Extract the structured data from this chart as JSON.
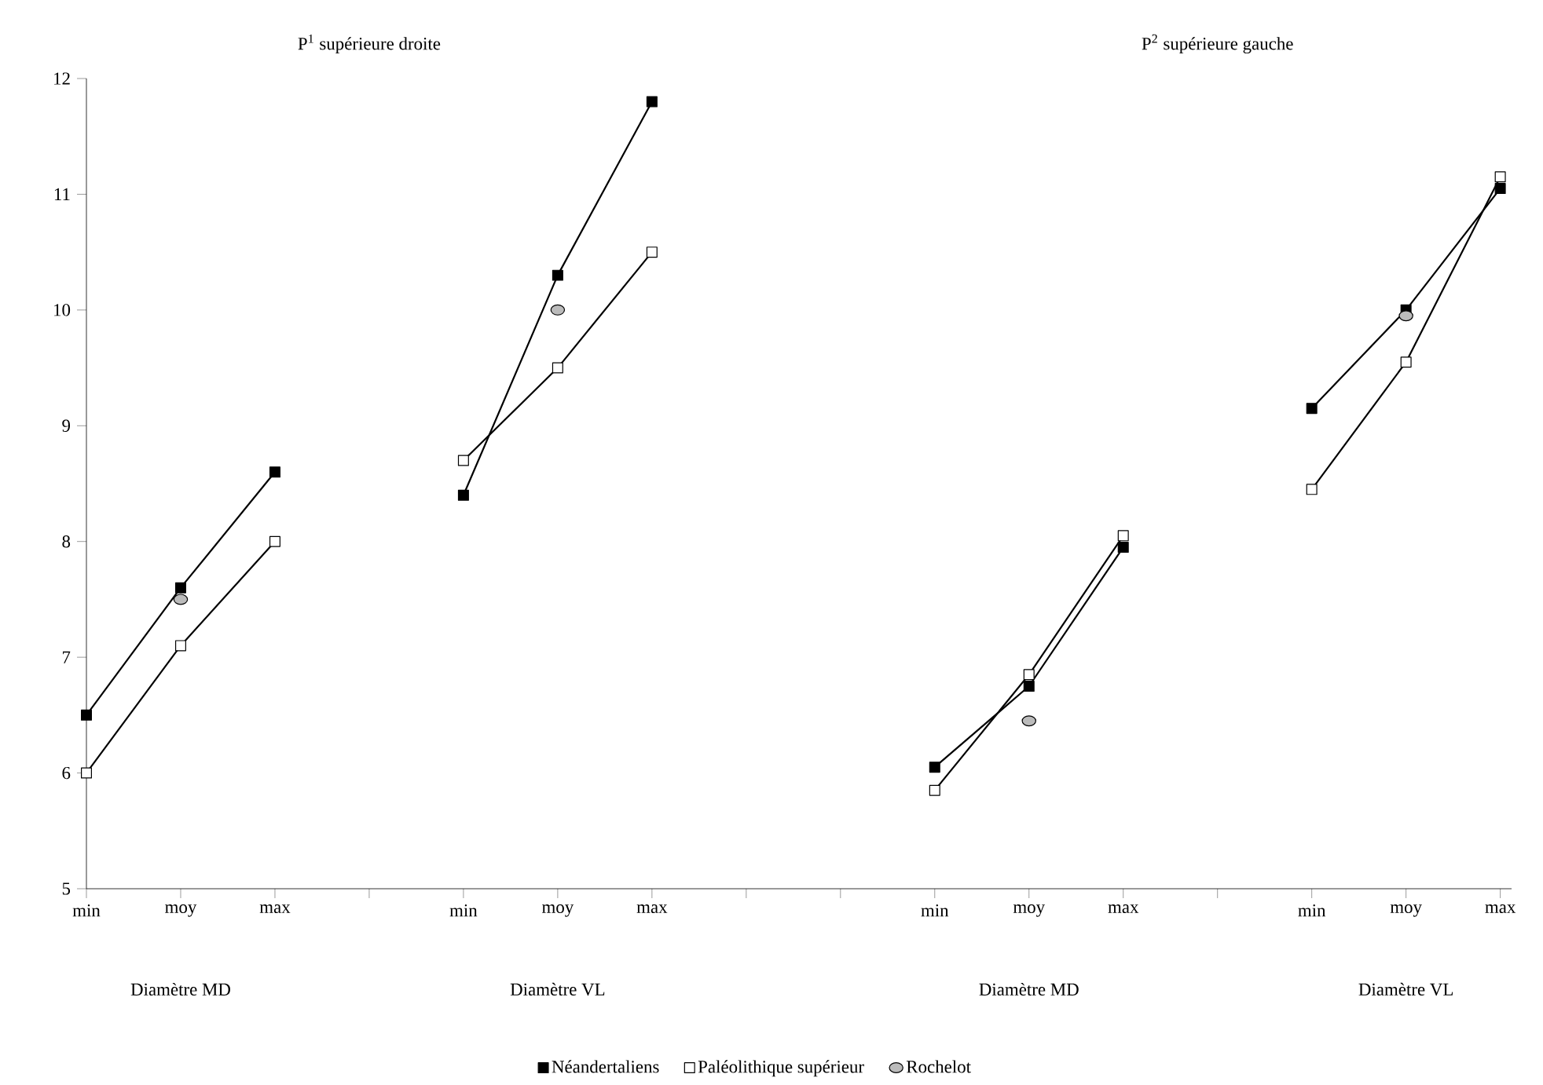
{
  "chart_data": {
    "type": "line",
    "categories": [
      "min",
      "moy",
      "max",
      null,
      "min",
      "moy",
      "max",
      null,
      null,
      "min",
      "moy",
      "max",
      null,
      "min",
      "moy",
      "max"
    ],
    "series": [
      {
        "name": "Néandertaliens",
        "color": "#000000",
        "marker": "square",
        "values": [
          6.5,
          7.6,
          8.6,
          null,
          8.4,
          10.3,
          11.8,
          null,
          null,
          6.05,
          6.75,
          7.95,
          null,
          9.15,
          10.0,
          11.05
        ]
      },
      {
        "name": "Paléolithique supérieur",
        "color": "#ffffff",
        "marker": "square",
        "values": [
          6.0,
          7.1,
          8.0,
          null,
          8.7,
          9.5,
          10.5,
          null,
          null,
          5.85,
          6.85,
          8.05,
          null,
          8.45,
          9.55,
          11.15
        ]
      },
      {
        "name": "Rochelot",
        "type": "scatter",
        "color": "#bbbbbb",
        "marker": "circle",
        "values": [
          null,
          7.5,
          null,
          null,
          null,
          10.0,
          null,
          null,
          null,
          null,
          6.45,
          null,
          null,
          null,
          9.95,
          null
        ]
      }
    ],
    "ylim": [
      5,
      12
    ],
    "yticks": [
      5,
      6,
      7,
      8,
      9,
      10,
      11,
      12
    ],
    "grid": false,
    "legend": "bottom",
    "annotations": [
      "P$^{1}$ supérieure droite",
      "P$^{2}$ supérieure gauche",
      "Diamètre MD",
      "Diamètre VL",
      "Diamètre MD",
      "Diamètre VL"
    ]
  }
}
